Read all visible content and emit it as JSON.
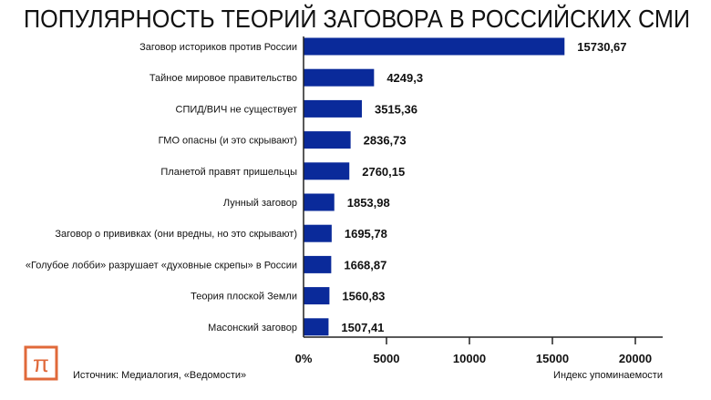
{
  "chart_data": {
    "type": "bar",
    "orientation": "horizontal",
    "title": "ПОПУЛЯРНОСТЬ ТЕОРИЙ ЗАГОВОРА В РОССИЙСКИХ СМИ",
    "categories": [
      "Заговор историков против России",
      "Тайное мировое правительство",
      "СПИД/ВИЧ не существует",
      "ГМО опасны (и это скрывают)",
      "Планетой правят пришельцы",
      "Лунный заговор",
      "Заговор о прививках (они вредны, но это скрывают)",
      "«Голубое лобби» разрушает «духовные скрепы» в России",
      "Теория плоской Земли",
      "Масонский заговор"
    ],
    "values": [
      15730.67,
      4249.3,
      3515.36,
      2836.73,
      2760.15,
      1853.98,
      1695.78,
      1668.87,
      1560.83,
      1507.41
    ],
    "value_labels": [
      "15730,67",
      "4249,3",
      "3515,36",
      "2836,73",
      "2760,15",
      "1853,98",
      "1695,78",
      "1668,87",
      "1560,83",
      "1507,41"
    ],
    "xlabel": "Индекс упоминаемости",
    "xticks": [
      0,
      5000,
      10000,
      15000,
      20000
    ],
    "xtick_labels": [
      "0%",
      "5000",
      "10000",
      "15000",
      "20000"
    ],
    "xlim": [
      0,
      21500
    ],
    "bar_color": "#0a2a9a",
    "grid": false
  },
  "source": "Источник: Медиалогия, «Ведомости»",
  "logo": {
    "glyph": "π",
    "color": "#e0693a"
  }
}
